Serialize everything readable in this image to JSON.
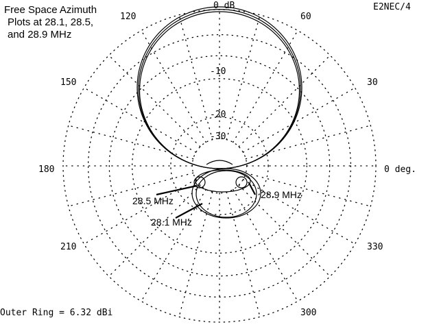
{
  "chart_data": {
    "type": "polar",
    "title": [
      "Free Space Azimuth",
      "Plots at 28.1, 28.5,",
      "and 28.9 MHz"
    ],
    "program": "E2NEC/4",
    "outer_ring_label": "Outer Ring = 6.32 dBi",
    "angle_unit": "deg",
    "angle_ticks": [
      {
        "deg": 0,
        "label": "0 deg."
      },
      {
        "deg": 30,
        "label": "30"
      },
      {
        "deg": 60,
        "label": "60"
      },
      {
        "deg": 90,
        "label": "0 dB"
      },
      {
        "deg": 120,
        "label": "120"
      },
      {
        "deg": 150,
        "label": "150"
      },
      {
        "deg": 180,
        "label": "180"
      },
      {
        "deg": 210,
        "label": "210"
      },
      {
        "deg": 300,
        "label": "300"
      },
      {
        "deg": 330,
        "label": "330"
      }
    ],
    "ring_labels": [
      "-10",
      "-20",
      "-30"
    ],
    "series": [
      {
        "name": "28.1 MHz",
        "forward_scale": 1.0,
        "back_lobe_db": -12
      },
      {
        "name": "28.5 MHz",
        "forward_scale": 0.985,
        "back_lobe_db": -18
      },
      {
        "name": "28.9 MHz",
        "forward_scale": 0.97,
        "back_lobe_db": -15
      }
    ],
    "series_labels": [
      "28.1 MHz",
      "28.5 MHz",
      "28.9 MHz"
    ]
  }
}
